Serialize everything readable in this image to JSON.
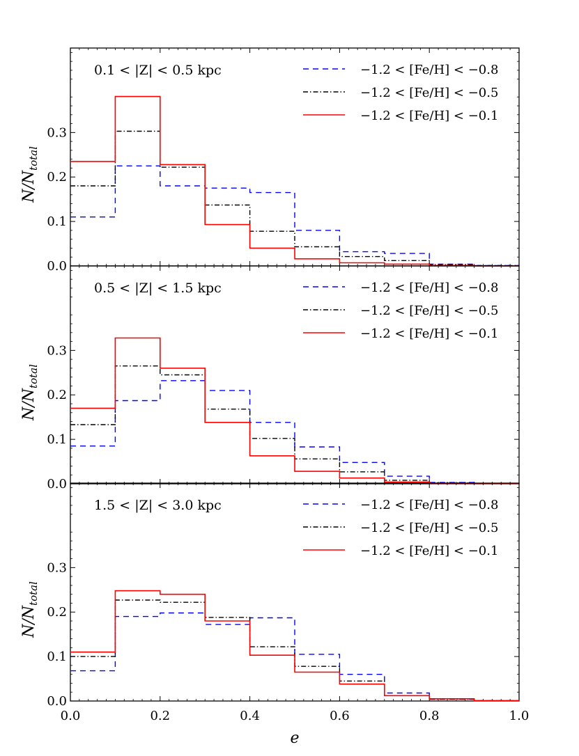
{
  "chart_data": {
    "type": "step-histogram",
    "xlabel": "e",
    "ylabel": "N/N",
    "ylabel_subscript": "total",
    "xlim": [
      0.0,
      1.0
    ],
    "ylim": [
      0.0,
      0.49
    ],
    "x_ticks": [
      "0.0",
      "0.2",
      "0.4",
      "0.6",
      "0.8",
      "1.0"
    ],
    "y_ticks": [
      "0.0",
      "0.1",
      "0.2",
      "0.3"
    ],
    "bin_edges": [
      0.0,
      0.1,
      0.2,
      0.3,
      0.4,
      0.5,
      0.6,
      0.7,
      0.8,
      0.9,
      1.0
    ],
    "legend_entries": [
      "−1.2 < [Fe/H] < −0.8",
      "−1.2 < [Fe/H] < −0.5",
      "−1.2 < [Fe/H] < −0.1"
    ],
    "colors": {
      "series1": "#0000ff",
      "series2": "#000000",
      "series3": "#ff0000"
    },
    "panels": [
      {
        "label": "0.1 < |Z| < 0.5 kpc",
        "series": [
          {
            "name": "−1.2 < [Fe/H] < −0.8",
            "values": [
              0.11,
              0.225,
              0.18,
              0.175,
              0.165,
              0.08,
              0.032,
              0.028,
              0.004,
              0.001
            ]
          },
          {
            "name": "−1.2 < [Fe/H] < −0.5",
            "values": [
              0.18,
              0.303,
              0.222,
              0.137,
              0.078,
              0.043,
              0.021,
              0.012,
              0.003,
              0.001
            ]
          },
          {
            "name": "−1.2 < [Fe/H] < −0.1",
            "values": [
              0.235,
              0.381,
              0.228,
              0.093,
              0.04,
              0.016,
              0.007,
              0.004,
              0.001,
              0.0
            ]
          }
        ]
      },
      {
        "label": "0.5 < |Z| < 1.5 kpc",
        "series": [
          {
            "name": "−1.2 < [Fe/H] < −0.8",
            "values": [
              0.085,
              0.187,
              0.232,
              0.21,
              0.138,
              0.083,
              0.048,
              0.017,
              0.003,
              0.001
            ]
          },
          {
            "name": "−1.2 < [Fe/H] < −0.5",
            "values": [
              0.133,
              0.265,
              0.245,
              0.168,
              0.102,
              0.056,
              0.027,
              0.008,
              0.002,
              0.001
            ]
          },
          {
            "name": "−1.2 < [Fe/H] < −0.1",
            "values": [
              0.17,
              0.328,
              0.26,
              0.138,
              0.063,
              0.028,
              0.013,
              0.004,
              0.001,
              0.0
            ]
          }
        ]
      },
      {
        "label": "1.5 < |Z| < 3.0 kpc",
        "series": [
          {
            "name": "−1.2 < [Fe/H] < −0.8",
            "values": [
              0.068,
              0.19,
              0.198,
              0.172,
              0.187,
              0.105,
              0.06,
              0.018,
              0.004,
              0.001
            ]
          },
          {
            "name": "−1.2 < [Fe/H] < −0.5",
            "values": [
              0.1,
              0.227,
              0.222,
              0.188,
              0.122,
              0.078,
              0.045,
              0.012,
              0.004,
              0.001
            ]
          },
          {
            "name": "−1.2 < [Fe/H] < −0.1",
            "values": [
              0.11,
              0.248,
              0.24,
              0.18,
              0.103,
              0.065,
              0.038,
              0.012,
              0.005,
              0.001
            ]
          }
        ]
      }
    ]
  }
}
